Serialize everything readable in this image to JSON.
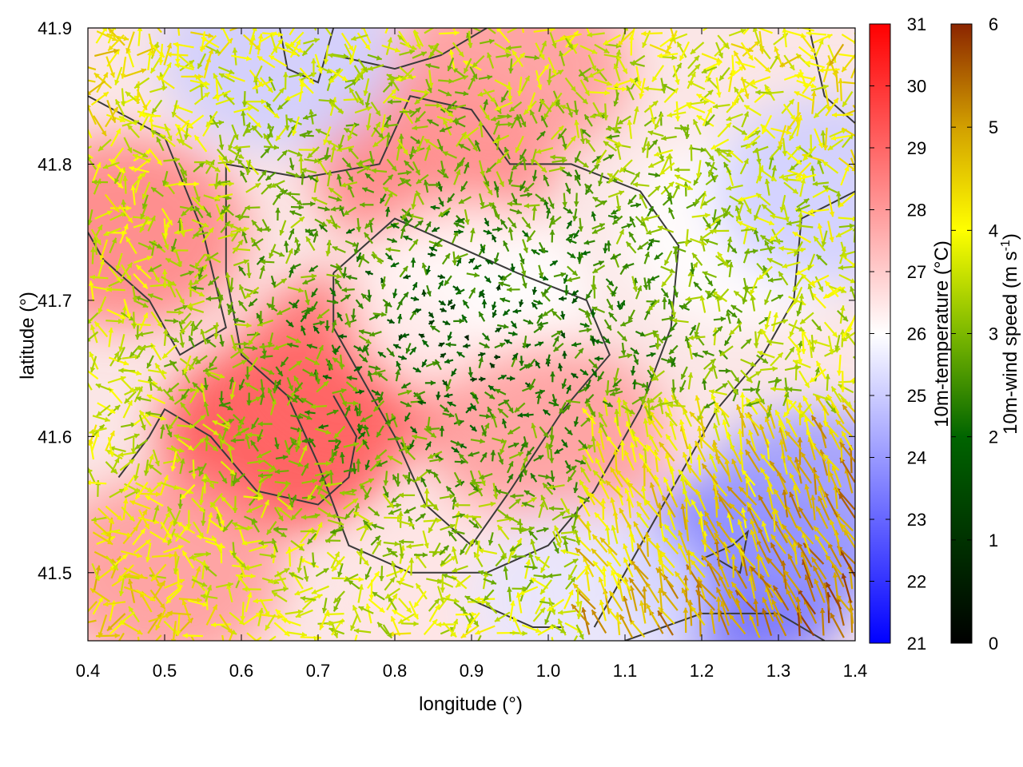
{
  "chart_data": {
    "type": "heatmap",
    "subtype": "temperature field with wind vectors",
    "xlabel": "longitude (°)",
    "ylabel": "latitude (°)",
    "xlim": [
      0.4,
      1.4
    ],
    "ylim": [
      41.45,
      41.9
    ],
    "x_ticks": [
      "0.4",
      "0.5",
      "0.6",
      "0.7",
      "0.8",
      "0.9",
      "1.0",
      "1.1",
      "1.2",
      "1.3",
      "1.4"
    ],
    "y_ticks": [
      "41.5",
      "41.6",
      "41.7",
      "41.8",
      "41.9"
    ],
    "grid": false,
    "colorbars": [
      {
        "label": "10m-temperature (°C)",
        "range": [
          21,
          31
        ],
        "ticks": [
          "21",
          "22",
          "23",
          "24",
          "25",
          "26",
          "27",
          "28",
          "29",
          "30",
          "31"
        ],
        "palette": [
          "#0000ff",
          "#ffffff",
          "#ff0000"
        ]
      },
      {
        "label_main": "10m-wind speed (m s",
        "label_sup": "-1",
        "label_end": ")",
        "range": [
          0,
          6
        ],
        "ticks": [
          "0",
          "1",
          "2",
          "3",
          "4",
          "5",
          "6"
        ],
        "palette": [
          "#000000",
          "#006400",
          "#7cb800",
          "#ffff00",
          "#d2a000",
          "#8b2500"
        ]
      }
    ],
    "temperature_regions": [
      {
        "lon": 0.45,
        "lat": 41.75,
        "value": 28.5
      },
      {
        "lon": 0.65,
        "lat": 41.6,
        "value": 29.5
      },
      {
        "lon": 0.75,
        "lat": 41.65,
        "value": 29
      },
      {
        "lon": 0.85,
        "lat": 41.8,
        "value": 28.5
      },
      {
        "lon": 0.9,
        "lat": 41.7,
        "value": 26
      },
      {
        "lon": 1.0,
        "lat": 41.6,
        "value": 28
      },
      {
        "lon": 0.95,
        "lat": 41.87,
        "value": 28
      },
      {
        "lon": 1.25,
        "lat": 41.75,
        "value": 26
      },
      {
        "lon": 1.25,
        "lat": 41.5,
        "value": 23
      },
      {
        "lon": 1.35,
        "lat": 41.55,
        "value": 24
      },
      {
        "lon": 0.65,
        "lat": 41.88,
        "value": 25
      },
      {
        "lon": 0.88,
        "lat": 41.48,
        "value": 26.5
      },
      {
        "lon": 1.05,
        "lat": 41.48,
        "value": 25.5
      },
      {
        "lon": 1.37,
        "lat": 41.78,
        "value": 25
      },
      {
        "lon": 0.5,
        "lat": 41.5,
        "value": 28
      }
    ]
  }
}
